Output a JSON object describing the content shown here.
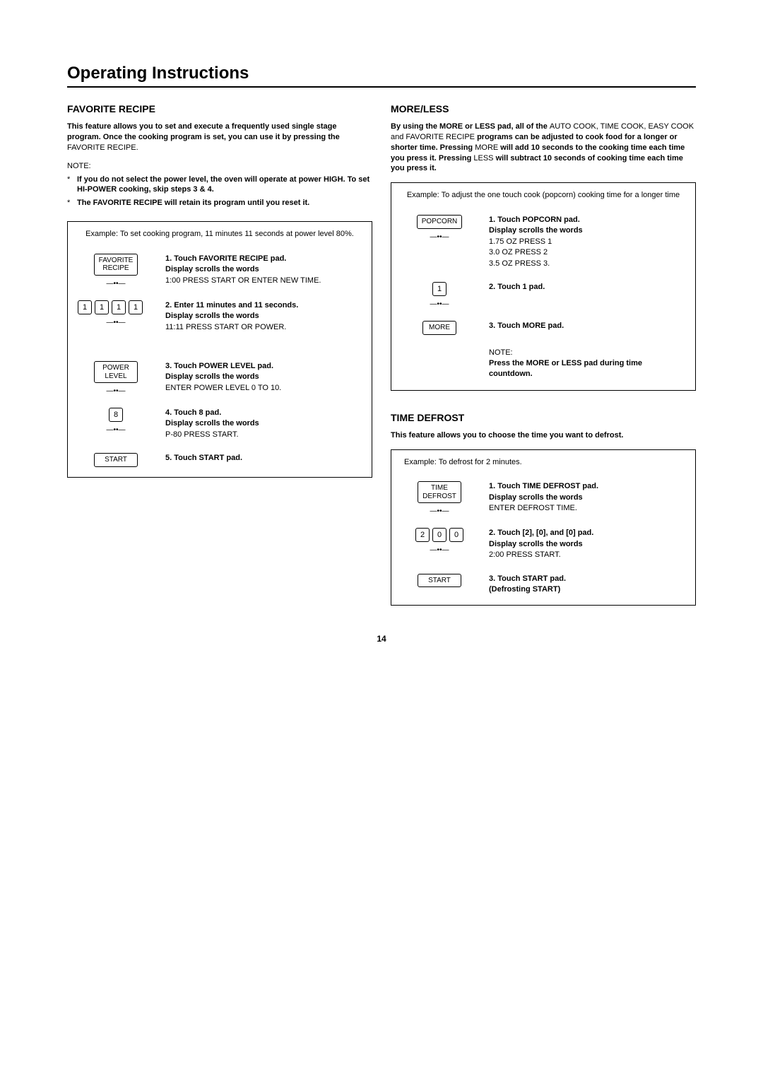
{
  "page": {
    "title": "Operating Instructions",
    "number": "14"
  },
  "favorite": {
    "heading": "FAVORITE RECIPE",
    "intro_bold": "This feature allows you to set and execute a frequently used single stage program. Once the cooking program is set, you can use it by pressing the ",
    "intro_tail": "FAVORITE RECIPE.",
    "note_label": "NOTE:",
    "notes": [
      "If you do not select the power level, the oven will operate at power HIGH. To set HI-POWER cooking, skip steps 3 & 4.",
      "The FAVORITE RECIPE will retain its program until you reset it."
    ],
    "example_header": "Example: To set cooking program, 11 minutes 11 seconds at power level 80%.",
    "steps": [
      {
        "pad": "FAVORITE\nRECIPE",
        "text_lead": "1. Touch ",
        "text_pad": "FAVORITE RECIPE",
        "text_bold_tail": " pad.\nDisplay scrolls the words",
        "text_plain": "1:00 PRESS START OR ENTER NEW TIME."
      },
      {
        "keys": [
          "1",
          "1",
          "1",
          "1"
        ],
        "text_lead": "2. Enter 11 minutes and 11 seconds.\nDisplay scrolls the words",
        "text_plain": "11:11 PRESS START OR POWER."
      },
      {
        "pad": "POWER\nLEVEL",
        "text_lead": "3. Touch ",
        "text_pad": "POWER LEVEL",
        "text_bold_tail": " pad.\nDisplay scrolls the words",
        "text_plain": "ENTER POWER LEVEL 0 TO 10."
      },
      {
        "keys": [
          "8"
        ],
        "text_lead": "4. Touch ",
        "text_pad": "8",
        "text_bold_tail": " pad.\nDisplay scrolls the words",
        "text_plain": "P-80 PRESS START."
      },
      {
        "pad": "START",
        "no_beep": true,
        "text_lead": "5. Touch ",
        "text_pad": "START",
        "text_bold_tail": " pad."
      }
    ]
  },
  "moreless": {
    "heading": "MORE/LESS",
    "intro_parts": [
      {
        "b": true,
        "t": "By using the MORE or LESS pad, all of the "
      },
      {
        "b": false,
        "t": "AUTO COOK, TIME COOK, EASY COOK and FAVORITE RECIPE "
      },
      {
        "b": true,
        "t": "programs can be adjusted to cook food for a longer or shorter time. Pressing "
      },
      {
        "b": false,
        "t": "MORE "
      },
      {
        "b": true,
        "t": "will add 10 seconds to the cooking time each time you press it. Pressing "
      },
      {
        "b": false,
        "t": "LESS "
      },
      {
        "b": true,
        "t": "will subtract 10 seconds of cooking time each time you press it."
      }
    ],
    "example_header": "Example: To adjust the one touch cook (popcorn) cooking time for a longer time",
    "steps": [
      {
        "pad": "POPCORN",
        "text_lead": "1. Touch ",
        "text_pad": "POPCORN",
        "text_bold_tail": " pad.\nDisplay scrolls the words",
        "text_plain": "1.75 OZ PRESS 1\n3.0 OZ PRESS 2\n3.5 OZ PRESS 3."
      },
      {
        "keys": [
          "1"
        ],
        "text_lead": "2. Touch ",
        "text_pad": "1",
        "text_bold_tail": " pad."
      },
      {
        "pad": "MORE",
        "no_beep": true,
        "text_lead": "3. Touch ",
        "text_pad": "MORE",
        "text_bold_tail": " pad."
      }
    ],
    "footer_note_label": "NOTE:",
    "footer_note": "Press the MORE or LESS pad during time countdown."
  },
  "defrost": {
    "heading": "TIME DEFROST",
    "intro": "This feature allows you to choose the time you want to defrost.",
    "example_header": "Example: To defrost for 2 minutes.",
    "steps": [
      {
        "pad": "TIME\nDEFROST",
        "text_lead": "1. Touch ",
        "text_pad": "TIME DEFROST",
        "text_bold_tail": " pad.\nDisplay scrolls the words",
        "text_plain": "ENTER DEFROST TIME."
      },
      {
        "keys": [
          "2",
          "0",
          "0"
        ],
        "text_lead": "2. Touch ",
        "text_pad": "[2], [0], and [0] ",
        "text_bold_tail": " pad.\nDisplay scrolls the words",
        "text_plain": "2:00 PRESS START."
      },
      {
        "pad": "START",
        "no_beep": true,
        "text_lead": "3. Touch ",
        "text_pad": "START",
        "text_bold_tail": " pad.\n(Defrosting START)"
      }
    ]
  }
}
